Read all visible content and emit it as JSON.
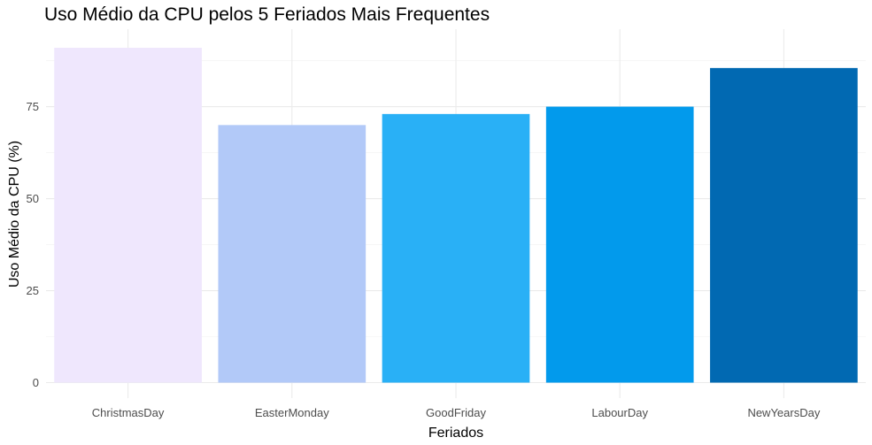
{
  "chart_data": {
    "type": "bar",
    "title": "Uso Médio da CPU pelos 5 Feriados Mais Frequentes",
    "xlabel": "Feriados",
    "ylabel": "Uso Médio da CPU (%)",
    "categories": [
      "ChristmasDay",
      "EasterMonday",
      "GoodFriday",
      "LabourDay",
      "NewYearsDay"
    ],
    "values": [
      91,
      70,
      73,
      75,
      85.5
    ],
    "colors": [
      "#efe7fd",
      "#b2c9f8",
      "#29b0f6",
      "#029aec",
      "#0169b2"
    ],
    "ylim": [
      0,
      95
    ],
    "yticks": [
      0,
      25,
      50,
      75
    ],
    "grid": true,
    "legend": "none"
  }
}
